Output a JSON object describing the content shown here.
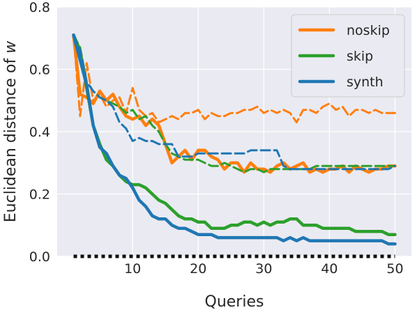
{
  "chart_data": {
    "type": "line",
    "title": "",
    "xlabel": "Queries",
    "ylabel_text": "Euclidean distance of ",
    "ylabel_var": "w",
    "xlim": [
      -1.5,
      52.5
    ],
    "ylim": [
      0,
      0.8
    ],
    "xticks": [
      10,
      20,
      30,
      40,
      50
    ],
    "yticks": [
      0.0,
      0.2,
      0.4,
      0.6,
      0.8
    ],
    "grid": true,
    "background": "#eaeaf2",
    "legend_position": "top-right",
    "x": [
      1,
      2,
      3,
      4,
      5,
      6,
      7,
      8,
      9,
      10,
      11,
      12,
      13,
      14,
      15,
      16,
      17,
      18,
      19,
      20,
      21,
      22,
      23,
      24,
      25,
      26,
      27,
      28,
      29,
      30,
      31,
      32,
      33,
      34,
      35,
      36,
      37,
      38,
      39,
      40,
      41,
      42,
      43,
      44,
      45,
      46,
      47,
      48,
      49,
      50
    ],
    "series": [
      {
        "name": "noskip",
        "color": "#ff7f0e",
        "dash": false,
        "values": [
          0.71,
          0.52,
          0.51,
          0.49,
          0.53,
          0.5,
          0.52,
          0.48,
          0.45,
          0.44,
          0.45,
          0.42,
          0.44,
          0.42,
          0.36,
          0.3,
          0.32,
          0.34,
          0.31,
          0.34,
          0.34,
          0.32,
          0.31,
          0.28,
          0.3,
          0.3,
          0.27,
          0.3,
          0.28,
          0.28,
          0.27,
          0.29,
          0.3,
          0.28,
          0.29,
          0.3,
          0.27,
          0.28,
          0.27,
          0.28,
          0.28,
          0.29,
          0.27,
          0.29,
          0.28,
          0.27,
          0.28,
          0.28,
          0.29,
          0.29
        ]
      },
      {
        "name": "",
        "color": "#ff7f0e",
        "dash": true,
        "values": [
          0.71,
          0.45,
          0.62,
          0.5,
          0.52,
          0.48,
          0.5,
          0.51,
          0.46,
          0.54,
          0.47,
          0.45,
          0.46,
          0.43,
          0.44,
          0.45,
          0.44,
          0.46,
          0.46,
          0.47,
          0.44,
          0.46,
          0.45,
          0.45,
          0.46,
          0.46,
          0.47,
          0.47,
          0.48,
          0.46,
          0.47,
          0.46,
          0.47,
          0.46,
          0.43,
          0.47,
          0.47,
          0.46,
          0.48,
          0.49,
          0.47,
          0.48,
          0.45,
          0.47,
          0.47,
          0.46,
          0.47,
          0.46,
          0.46,
          0.46
        ]
      },
      {
        "name": "skip",
        "color": "#2ca02c",
        "dash": false,
        "values": [
          0.71,
          0.66,
          0.54,
          0.42,
          0.36,
          0.31,
          0.29,
          0.26,
          0.24,
          0.23,
          0.23,
          0.22,
          0.2,
          0.18,
          0.17,
          0.15,
          0.13,
          0.12,
          0.12,
          0.11,
          0.11,
          0.09,
          0.09,
          0.09,
          0.1,
          0.1,
          0.11,
          0.11,
          0.1,
          0.11,
          0.1,
          0.11,
          0.11,
          0.12,
          0.12,
          0.1,
          0.1,
          0.1,
          0.09,
          0.09,
          0.09,
          0.09,
          0.09,
          0.08,
          0.08,
          0.08,
          0.08,
          0.08,
          0.07,
          0.07
        ]
      },
      {
        "name": "",
        "color": "#2ca02c",
        "dash": true,
        "values": [
          0.71,
          0.67,
          0.56,
          0.53,
          0.51,
          0.5,
          0.49,
          0.48,
          0.46,
          0.47,
          0.44,
          0.45,
          0.42,
          0.4,
          0.36,
          0.33,
          0.32,
          0.31,
          0.31,
          0.31,
          0.3,
          0.29,
          0.29,
          0.3,
          0.29,
          0.28,
          0.27,
          0.28,
          0.28,
          0.27,
          0.28,
          0.28,
          0.28,
          0.28,
          0.28,
          0.28,
          0.28,
          0.29,
          0.29,
          0.29,
          0.29,
          0.29,
          0.29,
          0.29,
          0.29,
          0.29,
          0.29,
          0.29,
          0.29,
          0.29
        ]
      },
      {
        "name": "synth",
        "color": "#1f77b4",
        "dash": false,
        "values": [
          0.71,
          0.63,
          0.55,
          0.42,
          0.35,
          0.33,
          0.29,
          0.26,
          0.25,
          0.22,
          0.18,
          0.16,
          0.13,
          0.12,
          0.12,
          0.1,
          0.09,
          0.09,
          0.08,
          0.07,
          0.07,
          0.07,
          0.06,
          0.06,
          0.06,
          0.06,
          0.06,
          0.06,
          0.06,
          0.06,
          0.06,
          0.06,
          0.05,
          0.06,
          0.05,
          0.06,
          0.05,
          0.05,
          0.05,
          0.05,
          0.05,
          0.05,
          0.05,
          0.05,
          0.05,
          0.05,
          0.05,
          0.05,
          0.04,
          0.04
        ]
      },
      {
        "name": "",
        "color": "#1f77b4",
        "dash": true,
        "values": [
          0.71,
          0.66,
          0.56,
          0.53,
          0.51,
          0.5,
          0.48,
          0.43,
          0.41,
          0.37,
          0.38,
          0.37,
          0.37,
          0.36,
          0.36,
          0.36,
          0.32,
          0.32,
          0.32,
          0.33,
          0.33,
          0.33,
          0.33,
          0.33,
          0.33,
          0.33,
          0.33,
          0.34,
          0.34,
          0.34,
          0.34,
          0.34,
          0.29,
          0.28,
          0.28,
          0.28,
          0.28,
          0.28,
          0.28,
          0.28,
          0.28,
          0.28,
          0.28,
          0.28,
          0.28,
          0.28,
          0.28,
          0.28,
          0.28,
          0.29
        ]
      },
      {
        "name": "",
        "color": "#111111",
        "dotted": true,
        "values": [
          0,
          0,
          0,
          0,
          0,
          0,
          0,
          0,
          0,
          0,
          0,
          0,
          0,
          0,
          0,
          0,
          0,
          0,
          0,
          0,
          0,
          0,
          0,
          0,
          0,
          0,
          0,
          0,
          0,
          0,
          0,
          0,
          0,
          0,
          0,
          0,
          0,
          0,
          0,
          0,
          0,
          0,
          0,
          0,
          0,
          0,
          0,
          0,
          0,
          0
        ]
      }
    ]
  }
}
